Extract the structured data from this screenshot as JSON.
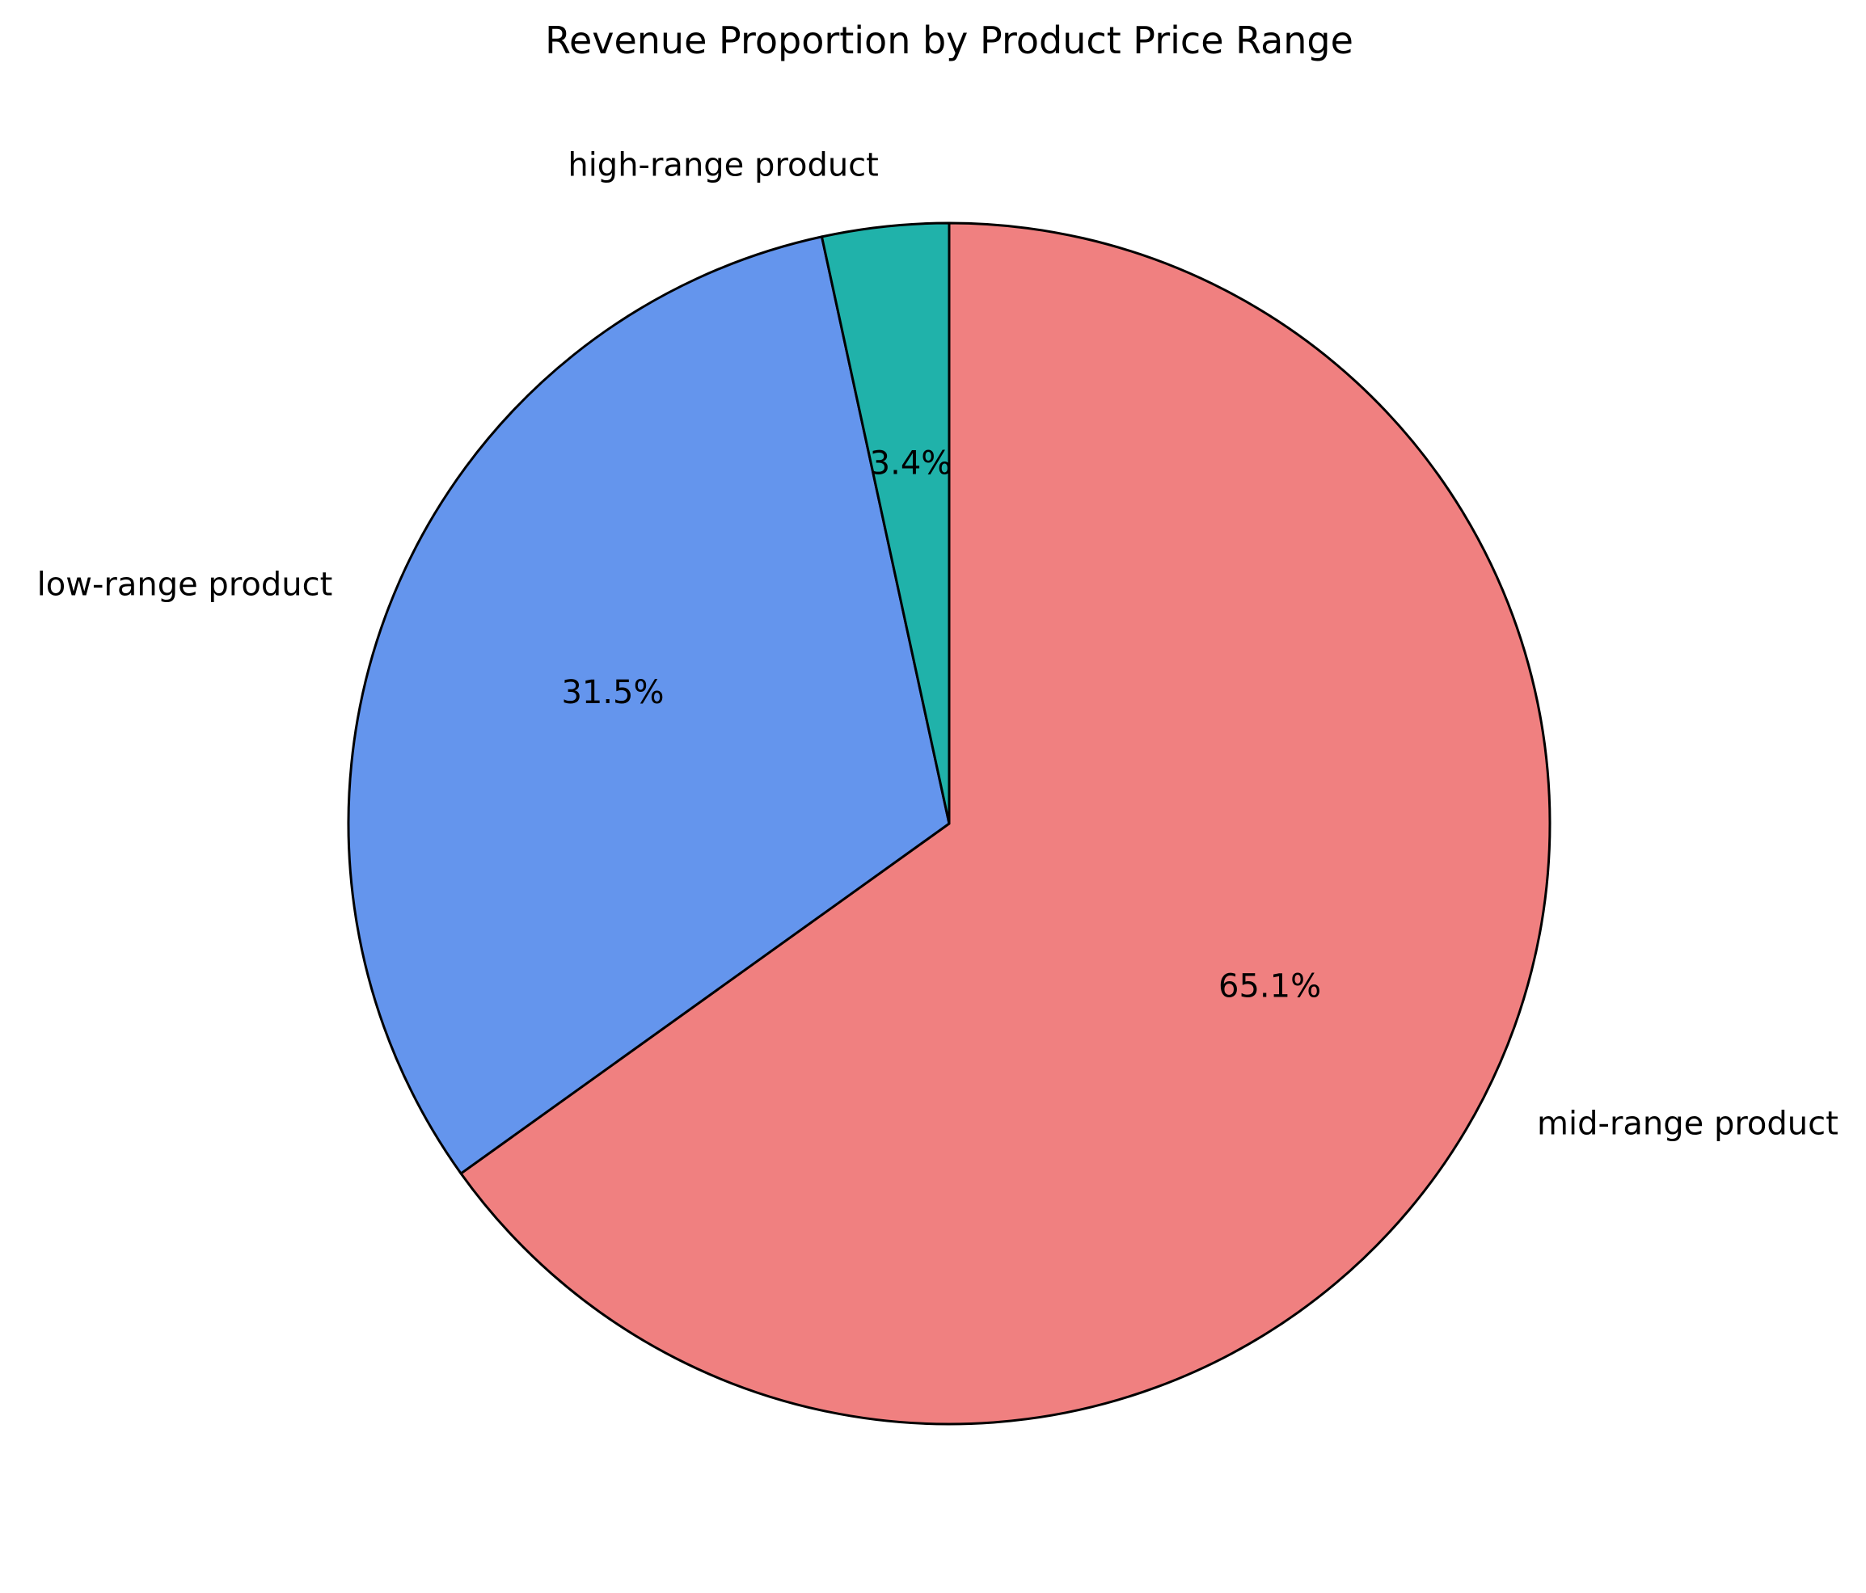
{
  "chart_data": {
    "type": "pie",
    "title": "Revenue Proportion by Product Price Range",
    "slices": [
      {
        "label": "mid-range product",
        "value": 65.1,
        "pct_label": "65.1%",
        "color": "#F08080"
      },
      {
        "label": "low-range product",
        "value": 31.5,
        "pct_label": "31.5%",
        "color": "#6495ED"
      },
      {
        "label": "high-range product",
        "value": 3.4,
        "pct_label": "3.4%",
        "color": "#20B2AA"
      }
    ],
    "start_angle_deg": 90,
    "direction": "clockwise",
    "edge_color": "#000000",
    "legend": "none"
  }
}
